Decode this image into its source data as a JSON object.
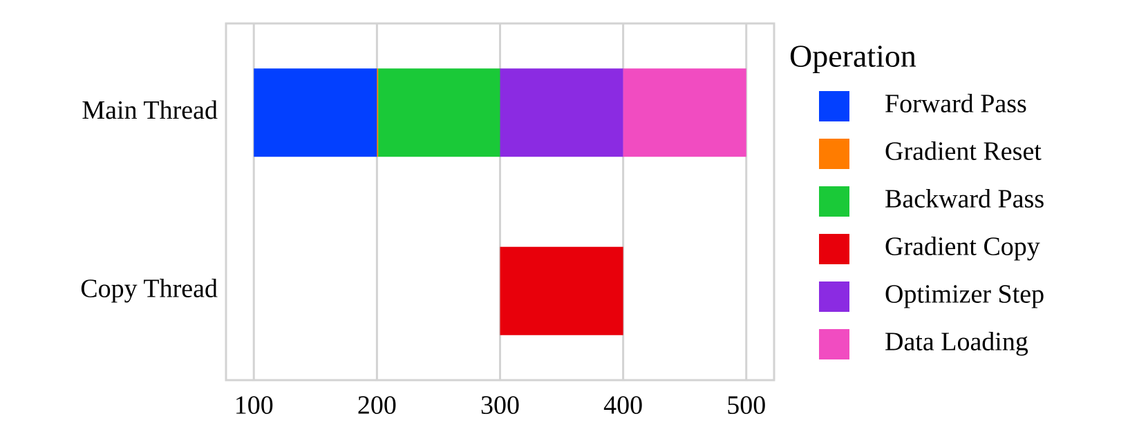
{
  "chart_data": {
    "type": "timeline",
    "categories": [
      "Main Thread",
      "Copy Thread"
    ],
    "legend_title": "Operation",
    "legend": "right",
    "grid": true,
    "xlim": [
      77.4,
      522.6
    ],
    "xticks": [
      100,
      200,
      300,
      400,
      500
    ],
    "series": [
      {
        "name": "Forward Pass",
        "color": "#0340ff",
        "start": [
          100,
          null
        ],
        "end": [
          200,
          null
        ]
      },
      {
        "name": "Gradient Reset",
        "color": "#ff7c00",
        "start": [
          200,
          null
        ],
        "end": [
          201,
          null
        ]
      },
      {
        "name": "Backward Pass",
        "color": "#1ac938",
        "start": [
          201,
          null
        ],
        "end": [
          300,
          null
        ]
      },
      {
        "name": "Gradient Copy",
        "color": "#e8000b",
        "start": [
          null,
          300
        ],
        "end": [
          null,
          400
        ]
      },
      {
        "name": "Optimizer Step",
        "color": "#8b2be2",
        "start": [
          300,
          null
        ],
        "end": [
          400,
          null
        ]
      },
      {
        "name": "Data Loading",
        "color": "#f14cc1",
        "start": [
          400,
          null
        ],
        "end": [
          500,
          null
        ]
      }
    ]
  }
}
